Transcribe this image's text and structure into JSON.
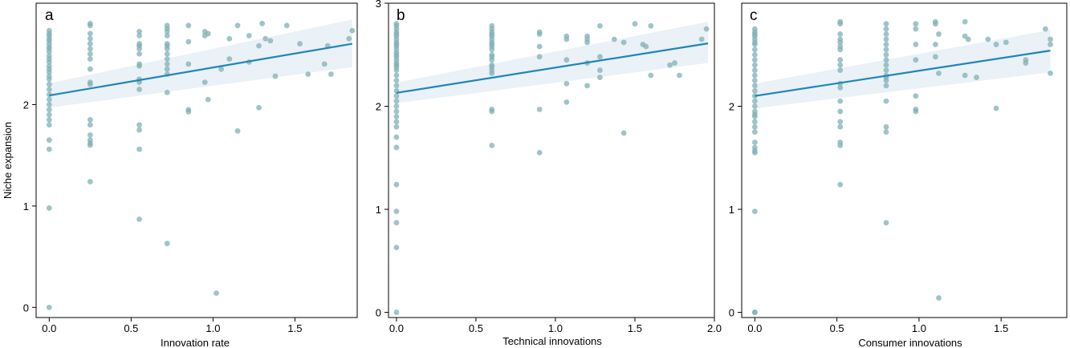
{
  "colors": {
    "points": "#7fb0b5",
    "fit": "#1f86b8",
    "band": "#dce8f2"
  },
  "chart_data": [
    {
      "type": "scatter",
      "panel_label": "a",
      "xlabel": "Innovation rate",
      "ylabel": "Niche expansion",
      "xlim": [
        -0.08,
        1.88
      ],
      "ylim": [
        -0.1,
        3.0
      ],
      "xticks": [
        0.0,
        0.5,
        1.0,
        1.5
      ],
      "xtick_labels": [
        "0.0",
        "0.5",
        "1.0",
        "1.5"
      ],
      "yticks": [
        0,
        1,
        2
      ],
      "ytick_labels": [
        "0",
        "1",
        "2"
      ],
      "fit": {
        "x": [
          0.0,
          1.85
        ],
        "y": [
          2.09,
          2.6
        ]
      },
      "band": {
        "x": [
          0.0,
          1.85
        ],
        "lower": [
          1.97,
          2.37
        ],
        "upper": [
          2.21,
          2.84
        ]
      },
      "x": [
        0,
        0,
        0,
        0,
        0,
        0,
        0,
        0,
        0,
        0,
        0,
        0,
        0,
        0,
        0,
        0,
        0,
        0,
        0,
        0,
        0,
        0,
        0,
        0,
        0,
        0,
        0,
        0,
        0,
        0,
        0.25,
        0.25,
        0.25,
        0.25,
        0.25,
        0.25,
        0.25,
        0.25,
        0.25,
        0.25,
        0.25,
        0.25,
        0.25,
        0.25,
        0.25,
        0.25,
        0.25,
        0.25,
        0.55,
        0.55,
        0.55,
        0.55,
        0.55,
        0.55,
        0.55,
        0.55,
        0.55,
        0.55,
        0.55,
        0.55,
        0.55,
        0.55,
        0.55,
        0.72,
        0.72,
        0.72,
        0.72,
        0.72,
        0.72,
        0.72,
        0.72,
        0.72,
        0.72,
        0.72,
        0.72,
        0.72,
        0.72,
        0.85,
        0.85,
        0.85,
        0.85,
        0.85,
        0.95,
        0.95,
        0.95,
        0.97,
        0.97,
        1.02,
        1.05,
        1.1,
        1.1,
        1.15,
        1.15,
        1.22,
        1.22,
        1.28,
        1.28,
        1.3,
        1.32,
        1.35,
        1.38,
        1.45,
        1.53,
        1.58,
        1.68,
        1.7,
        1.72,
        1.85,
        1.83
      ],
      "y": [
        2.73,
        2.7,
        2.68,
        2.65,
        2.63,
        2.6,
        2.57,
        2.55,
        2.52,
        2.48,
        2.45,
        2.42,
        2.38,
        2.35,
        2.32,
        2.28,
        2.25,
        2.2,
        2.15,
        2.1,
        2.05,
        2.0,
        1.95,
        1.9,
        1.85,
        1.8,
        1.65,
        1.56,
        0.98,
        0.0,
        2.8,
        2.78,
        2.7,
        2.65,
        2.6,
        2.55,
        2.5,
        2.45,
        2.35,
        2.22,
        2.2,
        1.85,
        1.8,
        1.7,
        1.65,
        1.62,
        1.6,
        1.24,
        2.72,
        2.68,
        2.6,
        2.58,
        2.55,
        2.5,
        2.4,
        2.38,
        2.25,
        2.22,
        2.15,
        1.8,
        1.75,
        1.56,
        0.87,
        2.78,
        2.75,
        2.72,
        2.68,
        2.6,
        2.58,
        2.55,
        2.5,
        2.45,
        2.4,
        2.35,
        2.3,
        2.12,
        0.63,
        2.78,
        2.62,
        2.4,
        1.95,
        1.93,
        2.72,
        2.68,
        2.22,
        2.05,
        2.7,
        0.14,
        2.35,
        2.65,
        2.45,
        2.78,
        1.74,
        2.68,
        2.42,
        2.58,
        1.97,
        2.8,
        2.65,
        2.63,
        2.28,
        2.78,
        2.6,
        2.3,
        2.4,
        2.58,
        2.3,
        2.73,
        2.65
      ]
    },
    {
      "type": "scatter",
      "panel_label": "b",
      "xlabel": "Technical innovations",
      "ylabel": "",
      "xlim": [
        -0.05,
        2.0
      ],
      "ylim": [
        -0.05,
        3.0
      ],
      "xticks": [
        0.0,
        0.5,
        1.0,
        1.5,
        2.0
      ],
      "xtick_labels": [
        "0.0",
        "0.5",
        "1.0",
        "1.5",
        "2.0"
      ],
      "yticks": [
        0,
        1,
        2,
        3
      ],
      "ytick_labels": [
        "0",
        "1",
        "2",
        "3"
      ],
      "fit": {
        "x": [
          0.0,
          1.96
        ],
        "y": [
          2.13,
          2.61
        ]
      },
      "band": {
        "x": [
          0.0,
          1.96
        ],
        "lower": [
          2.03,
          2.42
        ],
        "upper": [
          2.23,
          2.82
        ]
      },
      "x": [
        0,
        0,
        0,
        0,
        0,
        0,
        0,
        0,
        0,
        0,
        0,
        0,
        0,
        0,
        0,
        0,
        0,
        0,
        0,
        0,
        0,
        0,
        0,
        0,
        0,
        0,
        0,
        0,
        0,
        0,
        0,
        0,
        0,
        0,
        0,
        0,
        0,
        0.6,
        0.6,
        0.6,
        0.6,
        0.6,
        0.6,
        0.6,
        0.6,
        0.6,
        0.6,
        0.6,
        0.6,
        0.6,
        0.6,
        0.6,
        0.6,
        0.6,
        0.6,
        0.6,
        0.6,
        0.9,
        0.9,
        0.9,
        0.9,
        0.9,
        0.9,
        1.07,
        1.07,
        1.07,
        1.07,
        1.07,
        1.2,
        1.2,
        1.2,
        1.2,
        1.2,
        1.28,
        1.28,
        1.28,
        1.28,
        1.37,
        1.43,
        1.43,
        1.5,
        1.55,
        1.57,
        1.6,
        1.6,
        1.72,
        1.75,
        1.78,
        1.95,
        1.92
      ],
      "y": [
        2.8,
        2.78,
        2.75,
        2.72,
        2.7,
        2.68,
        2.65,
        2.62,
        2.6,
        2.58,
        2.55,
        2.52,
        2.5,
        2.48,
        2.45,
        2.42,
        2.4,
        2.38,
        2.35,
        2.3,
        2.25,
        2.2,
        2.15,
        2.1,
        2.05,
        2.0,
        1.95,
        1.9,
        1.85,
        1.8,
        1.7,
        1.6,
        1.24,
        0.98,
        0.87,
        0.63,
        0.0,
        2.78,
        2.75,
        2.72,
        2.7,
        2.68,
        2.65,
        2.62,
        2.6,
        2.58,
        2.55,
        2.5,
        2.48,
        2.45,
        2.4,
        2.38,
        2.35,
        2.32,
        1.97,
        1.95,
        1.62,
        2.72,
        2.7,
        2.58,
        2.48,
        1.97,
        1.55,
        2.68,
        2.65,
        2.45,
        2.22,
        2.04,
        2.68,
        2.65,
        2.62,
        2.42,
        2.2,
        2.78,
        2.48,
        2.35,
        2.28,
        2.65,
        2.62,
        1.74,
        2.8,
        2.6,
        2.58,
        2.78,
        2.3,
        2.4,
        2.42,
        2.3,
        2.75,
        2.65
      ]
    },
    {
      "type": "scatter",
      "panel_label": "c",
      "xlabel": "Consumer innovations",
      "ylabel": "",
      "xlim": [
        -0.08,
        1.9
      ],
      "ylim": [
        -0.05,
        3.0
      ],
      "xticks": [
        0.0,
        0.5,
        1.0,
        1.5
      ],
      "xtick_labels": [
        "0.0",
        "0.5",
        "1.0",
        "1.5"
      ],
      "yticks": [
        0,
        1,
        2
      ],
      "ytick_labels": [
        "0",
        "1",
        "2"
      ],
      "fit": {
        "x": [
          0.0,
          1.8
        ],
        "y": [
          2.1,
          2.54
        ]
      },
      "band": {
        "x": [
          0.0,
          1.8
        ],
        "lower": [
          1.98,
          2.33
        ],
        "upper": [
          2.22,
          2.74
        ]
      },
      "x": [
        0,
        0,
        0,
        0,
        0,
        0,
        0,
        0,
        0,
        0,
        0,
        0,
        0,
        0,
        0,
        0,
        0,
        0,
        0,
        0,
        0,
        0,
        0,
        0,
        0,
        0,
        0,
        0,
        0,
        0,
        0,
        0,
        0.52,
        0.52,
        0.52,
        0.52,
        0.52,
        0.52,
        0.52,
        0.52,
        0.52,
        0.52,
        0.52,
        0.52,
        0.52,
        0.52,
        0.52,
        0.52,
        0.52,
        0.52,
        0.52,
        0.8,
        0.8,
        0.8,
        0.8,
        0.8,
        0.8,
        0.8,
        0.8,
        0.8,
        0.8,
        0.8,
        0.8,
        0.8,
        0.8,
        0.8,
        0.8,
        0.8,
        0.8,
        0.98,
        0.98,
        0.98,
        0.98,
        0.98,
        0.98,
        0.98,
        1.1,
        1.1,
        1.1,
        1.1,
        1.12,
        1.12,
        1.12,
        1.28,
        1.28,
        1.28,
        1.3,
        1.35,
        1.42,
        1.47,
        1.47,
        1.53,
        1.65,
        1.65,
        1.77,
        1.8,
        1.8,
        1.8
      ],
      "y": [
        2.75,
        2.72,
        2.7,
        2.68,
        2.65,
        2.62,
        2.6,
        2.55,
        2.5,
        2.45,
        2.4,
        2.35,
        2.3,
        2.25,
        2.2,
        2.15,
        2.1,
        2.05,
        2.0,
        1.95,
        1.92,
        1.9,
        1.85,
        1.8,
        1.75,
        1.65,
        1.6,
        1.57,
        1.55,
        0.98,
        0.0,
        0.0,
        2.82,
        2.8,
        2.7,
        2.65,
        2.62,
        2.58,
        2.55,
        2.45,
        2.4,
        2.35,
        2.22,
        2.18,
        2.05,
        1.95,
        1.85,
        1.8,
        1.65,
        1.62,
        1.24,
        2.8,
        2.75,
        2.7,
        2.65,
        2.6,
        2.55,
        2.5,
        2.45,
        2.4,
        2.35,
        2.3,
        2.28,
        2.25,
        2.2,
        2.05,
        1.8,
        1.75,
        0.87,
        2.8,
        2.75,
        2.6,
        2.45,
        2.1,
        1.97,
        1.95,
        2.82,
        2.8,
        2.6,
        2.48,
        2.32,
        0.14,
        2.7,
        2.82,
        2.68,
        2.3,
        2.65,
        2.28,
        2.65,
        2.6,
        1.98,
        2.62,
        2.42,
        2.45,
        2.75,
        2.65,
        2.6,
        2.32
      ]
    }
  ]
}
